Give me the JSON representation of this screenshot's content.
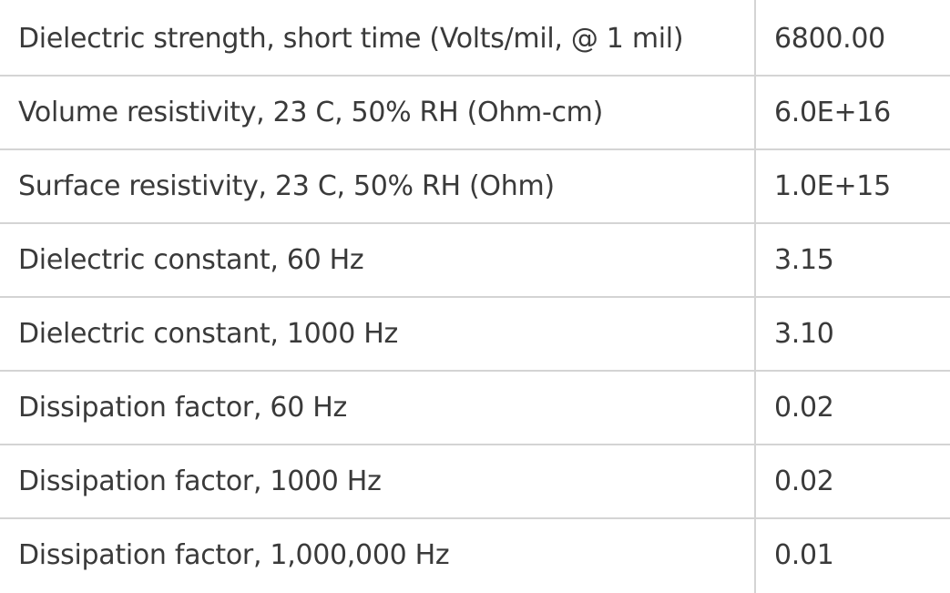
{
  "table": {
    "rows": [
      [
        "Dielectric strength, short time (Volts/mil, @ 1 mil)",
        "6800.00"
      ],
      [
        "Volume resistivity, 23 C, 50% RH (Ohm-cm)",
        "6.0E+16"
      ],
      [
        "Surface resistivity, 23 C, 50% RH (Ohm)",
        "1.0E+15"
      ],
      [
        "Dielectric constant, 60 Hz",
        "3.15"
      ],
      [
        "Dielectric constant, 1000 Hz",
        "3.10"
      ],
      [
        "Dissipation factor, 60 Hz",
        "0.02"
      ],
      [
        "Dissipation factor, 1000 Hz",
        "0.02"
      ],
      [
        "Dissipation factor, 1,000,000 Hz",
        "0.01"
      ]
    ]
  }
}
